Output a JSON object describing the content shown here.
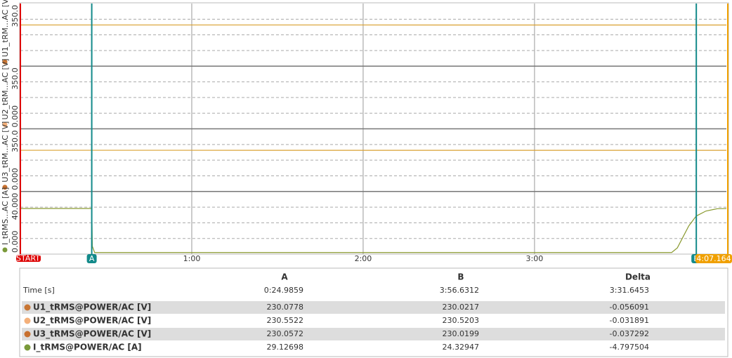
{
  "chart_data": {
    "type": "line",
    "xlim": [
      0,
      247.164
    ],
    "xticks": [
      {
        "value": 60,
        "label": "1:00"
      },
      {
        "value": 120,
        "label": "2:00"
      },
      {
        "value": 180,
        "label": "3:00"
      }
    ],
    "start_label": "START",
    "end_label": "4:07.164",
    "cursors": [
      {
        "label": "A",
        "x": 24.9859,
        "color": "#138a8a"
      },
      {
        "label": "B",
        "x": 236.6312,
        "color": "#138a8a"
      }
    ],
    "series": [
      {
        "name": "U1_tRM...AC [V]",
        "color": "#c87533",
        "line_color": "#d9a030",
        "ylim": [
          0,
          350
        ],
        "yticks": [
          {
            "value": 350,
            "label": "350.0"
          }
        ],
        "x": [
          0,
          247.164
        ],
        "values": [
          230.08,
          230.02
        ]
      },
      {
        "name": "U2_tRM...AC [V]",
        "color": "#f4b07a",
        "ylim": [
          0,
          350
        ],
        "yticks": [
          {
            "value": 0,
            "label": "0.000"
          },
          {
            "value": 350,
            "label": "350.0"
          }
        ]
      },
      {
        "name": "U3_tRM...AC [V]",
        "color": "#c8702f",
        "line_color": "#d9a030",
        "ylim": [
          0,
          350
        ],
        "yticks": [
          {
            "value": 0,
            "label": "0.000"
          },
          {
            "value": 350,
            "label": "350.0"
          }
        ],
        "x": [
          0,
          247.164
        ],
        "values": [
          230.06,
          230.02
        ]
      },
      {
        "name": "I_tRMS...AC [A]",
        "color": "#7a9a3a",
        "line_color": "#8a9a30",
        "ylim": [
          0,
          40
        ],
        "yticks": [
          {
            "value": 0,
            "label": "0.000"
          },
          {
            "value": 40,
            "label": "40.000"
          }
        ],
        "x": [
          0,
          24.99,
          25.2,
          26,
          228,
          230,
          232,
          234,
          236.6,
          240,
          244,
          247.164
        ],
        "values": [
          29.13,
          29.13,
          5,
          1,
          1,
          4,
          11,
          18,
          24.3,
          27.5,
          29,
          29.1
        ]
      }
    ]
  },
  "table": {
    "header": [
      "A",
      "B",
      "Delta"
    ],
    "time_row": [
      "Time [s]",
      "0:24.9859",
      "3:56.6312",
      "3:31.6453"
    ],
    "rows": [
      {
        "name": "U1_tRMS@POWER/AC [V]",
        "color": "#c87533",
        "cells": [
          "230.0778",
          "230.0217",
          "-0.056091"
        ]
      },
      {
        "name": "U2_tRMS@POWER/AC [V]",
        "color": "#f4b07a",
        "cells": [
          "230.5522",
          "230.5203",
          "-0.031891"
        ]
      },
      {
        "name": "U3_tRMS@POWER/AC [V]",
        "color": "#c8702f",
        "cells": [
          "230.0572",
          "230.0199",
          "-0.037292"
        ]
      },
      {
        "name": "I_tRMS@POWER/AC [A]",
        "color": "#7a9a3a",
        "cells": [
          "29.12698",
          "24.32947",
          "-4.797504"
        ]
      }
    ]
  }
}
